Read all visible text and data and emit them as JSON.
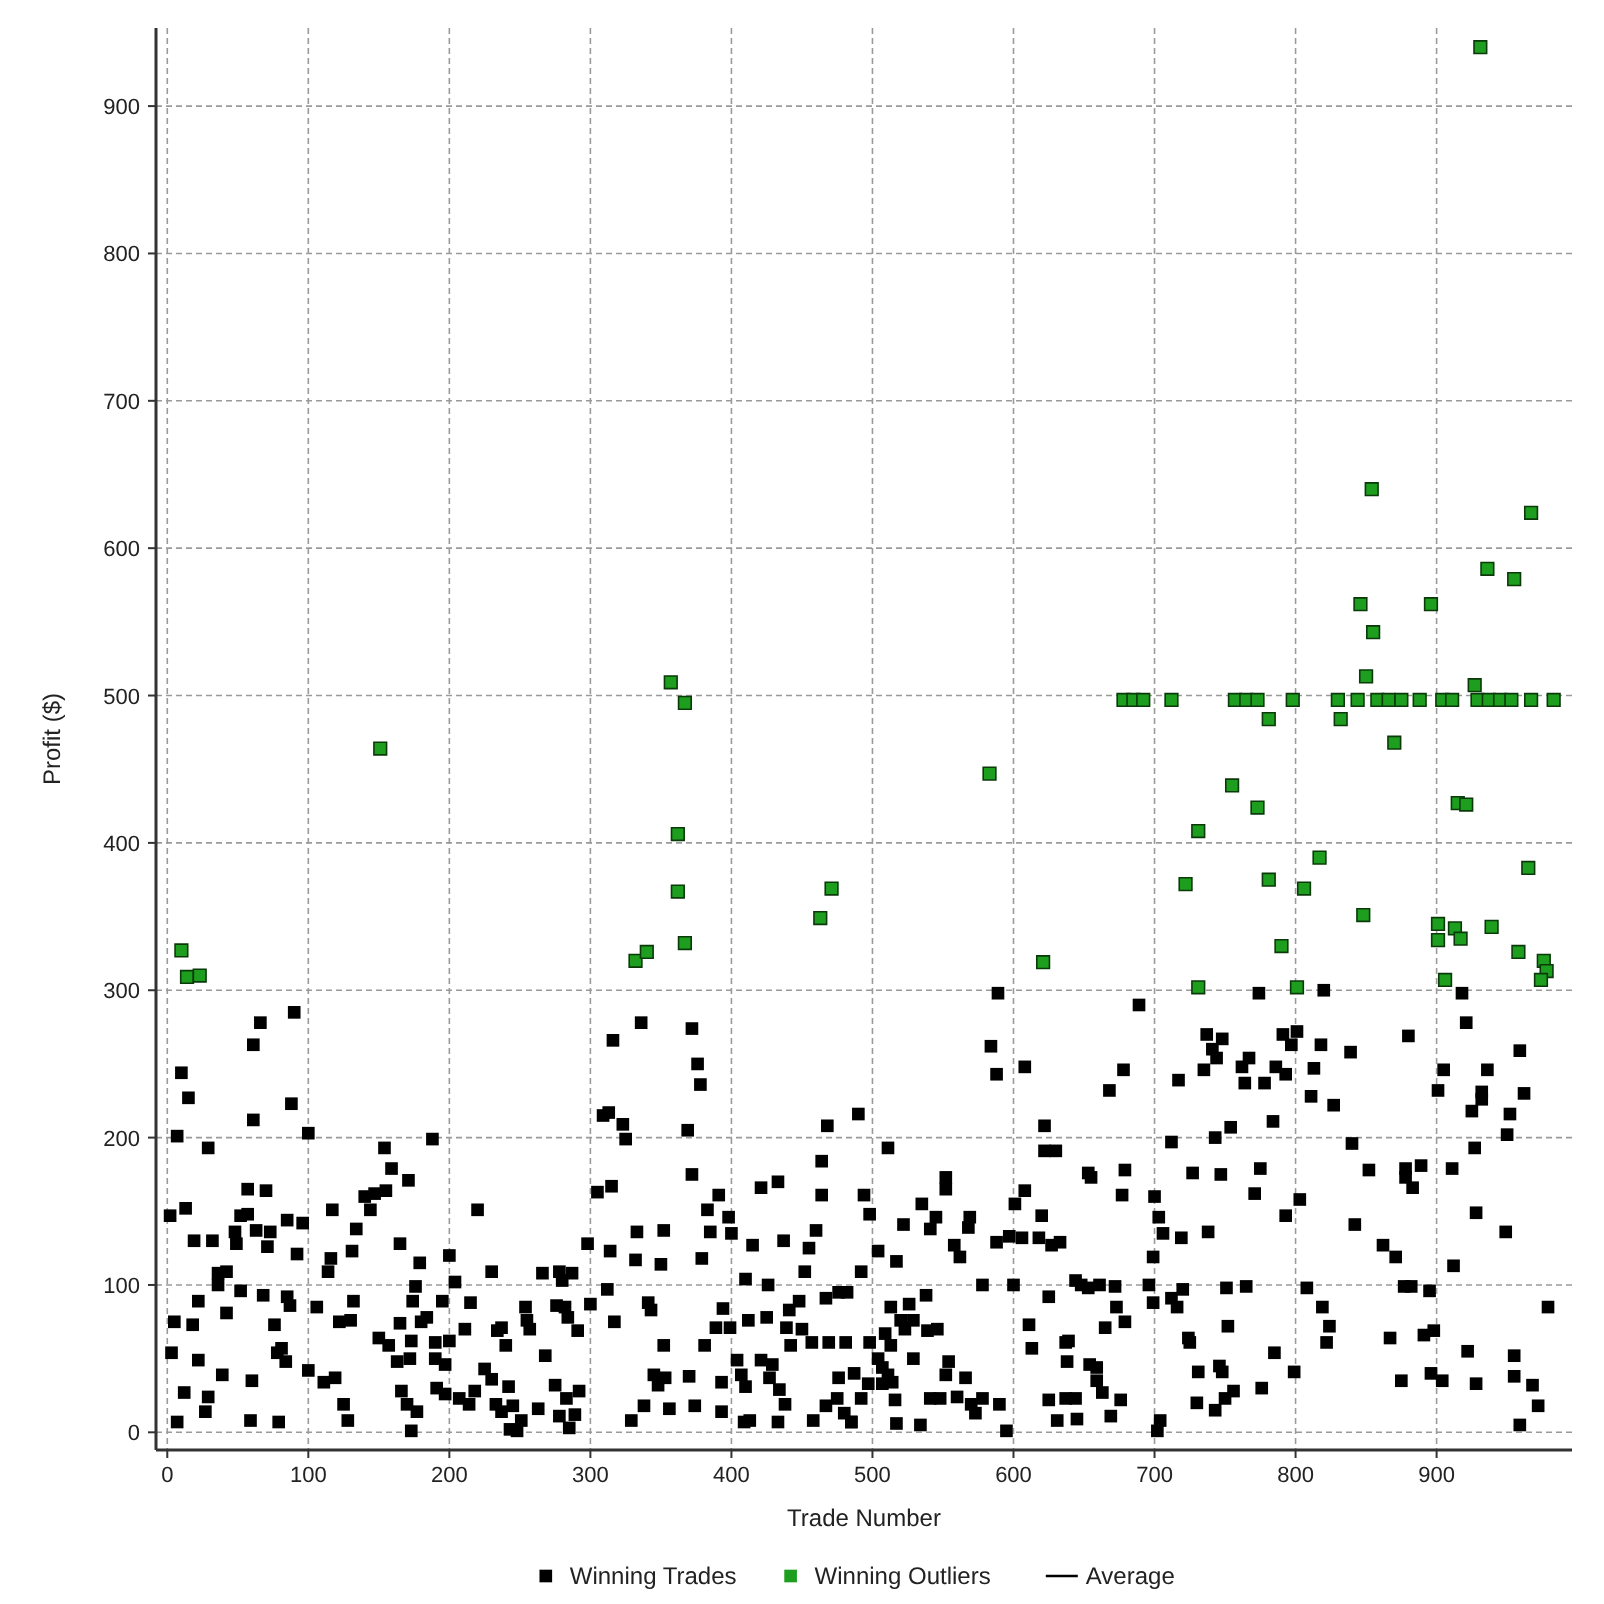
{
  "chart_data": {
    "type": "scatter",
    "xlabel": "Trade Number",
    "ylabel": "Profit ($)",
    "xlim": [
      -8,
      996
    ],
    "ylim": [
      -12,
      953
    ],
    "xticks": [
      0,
      100,
      200,
      300,
      400,
      500,
      600,
      700,
      800,
      900
    ],
    "yticks": [
      0,
      100,
      200,
      300,
      400,
      500,
      600,
      700,
      800,
      900
    ],
    "grid": true,
    "legend": "bottom",
    "marker": "square",
    "series": [
      {
        "name": "Winning Trades",
        "color": "#000000",
        "x": [
          90,
          66,
          61,
          10,
          15,
          88,
          61,
          7,
          100,
          188,
          29,
          154,
          159,
          171,
          57,
          70,
          140,
          147,
          155,
          2,
          13,
          117,
          144,
          220,
          52,
          57,
          85,
          96,
          19,
          32,
          48,
          49,
          63,
          73,
          71,
          134,
          92,
          131,
          165,
          200,
          116,
          179,
          114,
          230,
          36,
          42,
          36,
          176,
          204,
          52,
          68,
          85,
          87,
          22,
          132,
          174,
          195,
          215,
          42,
          106,
          5,
          18,
          76,
          122,
          130,
          165,
          180,
          184,
          211,
          234,
          150,
          157,
          173,
          190,
          200,
          3,
          81,
          78,
          84,
          22,
          163,
          172,
          190,
          197,
          39,
          100,
          60,
          111,
          119,
          225,
          230,
          12,
          29,
          125,
          166,
          191,
          197,
          218,
          27,
          170,
          177,
          207,
          214,
          7,
          59,
          79,
          128,
          173,
          237,
          336,
          316,
          372,
          376,
          378,
          309,
          313,
          323,
          325,
          369,
          468,
          372,
          305,
          315,
          391,
          421,
          433,
          464,
          464,
          383,
          398,
          333,
          352,
          385,
          400,
          298,
          314,
          415,
          437,
          460,
          455,
          332,
          350,
          379,
          452,
          266,
          278,
          287,
          280,
          410,
          426,
          312,
          254,
          276,
          282,
          300,
          341,
          343,
          284,
          255,
          291,
          317,
          394,
          389,
          399,
          412,
          425,
          441,
          448,
          467,
          476,
          482,
          237,
          257,
          240,
          268,
          352,
          381,
          404,
          421,
          429,
          439,
          450,
          457,
          469,
          481,
          442,
          345,
          353,
          348,
          370,
          393,
          407,
          410,
          427,
          434,
          476,
          242,
          275,
          283,
          292,
          233,
          245,
          263,
          278,
          289,
          251,
          243,
          248,
          285,
          338,
          356,
          374,
          393,
          329,
          409,
          413,
          433,
          438,
          458,
          467,
          475,
          480,
          485,
          589,
          689,
          584,
          588,
          608,
          678,
          668,
          717,
          490,
          622,
          622,
          630,
          511,
          712,
          653,
          655,
          679,
          552,
          552,
          608,
          727,
          494,
          677,
          700,
          498,
          601,
          535,
          545,
          541,
          569,
          568,
          522,
          620,
          703,
          706,
          719,
          597,
          606,
          618,
          627,
          633,
          588,
          558,
          562,
          504,
          517,
          492,
          699,
          578,
          600,
          644,
          648,
          653,
          661,
          672,
          696,
          720,
          712,
          716,
          699,
          625,
          538,
          513,
          526,
          529,
          523,
          539,
          546,
          673,
          611,
          613,
          637,
          639,
          665,
          679,
          638,
          654,
          659,
          659,
          663,
          676,
          724,
          725,
          731,
          730,
          498,
          509,
          513,
          520,
          504,
          507,
          511,
          529,
          487,
          497,
          507,
          514,
          554,
          552,
          566,
          492,
          516,
          541,
          548,
          560,
          570,
          573,
          578,
          590,
          485,
          517,
          534,
          595,
          625,
          637,
          644,
          631,
          645,
          669,
          704,
          702,
          774,
          820,
          918,
          737,
          748,
          741,
          744,
          735,
          791,
          801,
          797,
          818,
          762,
          767,
          786,
          793,
          813,
          778,
          764,
          839,
          811,
          827,
          784,
          754,
          743,
          880,
          921,
          959,
          905,
          936,
          901,
          932,
          932,
          925,
          962,
          952,
          950,
          927,
          840,
          852,
          878,
          878,
          883,
          889,
          911,
          775,
          747,
          771,
          803,
          793,
          738,
          842,
          862,
          871,
          928,
          949,
          912,
          751,
          765,
          808,
          819,
          824,
          822,
          877,
          882,
          895,
          979,
          752,
          785,
          867,
          891,
          898,
          922,
          955,
          746,
          748,
          799,
          776,
          756,
          750,
          743,
          875,
          896,
          904,
          928,
          955,
          968,
          972,
          959
        ],
        "values": [
          285,
          278,
          263,
          244,
          227,
          223,
          212,
          201,
          203,
          199,
          193,
          193,
          179,
          171,
          165,
          164,
          160,
          162,
          164,
          147,
          152,
          151,
          151,
          151,
          147,
          148,
          144,
          142,
          130,
          130,
          136,
          128,
          137,
          136,
          126,
          138,
          121,
          123,
          128,
          120,
          118,
          115,
          109,
          109,
          108,
          109,
          100,
          99,
          102,
          96,
          93,
          92,
          86,
          89,
          89,
          89,
          89,
          88,
          81,
          85,
          75,
          73,
          73,
          75,
          76,
          74,
          75,
          78,
          70,
          69,
          64,
          59,
          62,
          61,
          62,
          54,
          57,
          54,
          48,
          49,
          48,
          50,
          50,
          46,
          39,
          42,
          35,
          34,
          37,
          43,
          36,
          27,
          24,
          19,
          28,
          30,
          26,
          28,
          14,
          19,
          14,
          23,
          19,
          7,
          8,
          7,
          8,
          1,
          14,
          278,
          266,
          274,
          250,
          236,
          215,
          217,
          209,
          199,
          205,
          208,
          175,
          163,
          167,
          161,
          166,
          170,
          184,
          161,
          151,
          146,
          136,
          137,
          136,
          135,
          128,
          123,
          127,
          130,
          137,
          125,
          117,
          114,
          118,
          109,
          108,
          109,
          108,
          103,
          104,
          100,
          97,
          85,
          86,
          85,
          87,
          88,
          83,
          78,
          76,
          69,
          75,
          84,
          71,
          71,
          76,
          78,
          83,
          89,
          91,
          95,
          95,
          71,
          70,
          59,
          52,
          59,
          59,
          49,
          49,
          46,
          71,
          70,
          61,
          61,
          61,
          59,
          39,
          37,
          32,
          38,
          34,
          39,
          31,
          37,
          29,
          37,
          31,
          32,
          23,
          28,
          19,
          18,
          16,
          11,
          12,
          8,
          2,
          1,
          3,
          18,
          16,
          18,
          14,
          8,
          7,
          8,
          7,
          19,
          8,
          18,
          23,
          13,
          7,
          298,
          290,
          262,
          243,
          248,
          246,
          232,
          239,
          216,
          208,
          191,
          191,
          193,
          197,
          176,
          173,
          178,
          173,
          165,
          164,
          176,
          161,
          161,
          160,
          148,
          155,
          155,
          146,
          138,
          146,
          139,
          141,
          147,
          146,
          135,
          132,
          133,
          132,
          132,
          127,
          129,
          129,
          127,
          119,
          123,
          116,
          109,
          119,
          100,
          100,
          103,
          100,
          98,
          100,
          99,
          100,
          97,
          91,
          85,
          88,
          92,
          93,
          85,
          87,
          76,
          70,
          69,
          70,
          85,
          73,
          57,
          61,
          62,
          71,
          75,
          48,
          46,
          44,
          35,
          27,
          22,
          64,
          61,
          41,
          20,
          61,
          67,
          59,
          76,
          50,
          44,
          39,
          50,
          40,
          33,
          33,
          34,
          48,
          39,
          37,
          23,
          22,
          23,
          23,
          24,
          19,
          13,
          23,
          19,
          7,
          6,
          5,
          1,
          22,
          23,
          23,
          8,
          9,
          11,
          8,
          1,
          298,
          300,
          298,
          270,
          267,
          260,
          254,
          246,
          270,
          272,
          263,
          263,
          248,
          254,
          248,
          243,
          247,
          237,
          237,
          258,
          228,
          222,
          211,
          207,
          200,
          269,
          278,
          259,
          246,
          246,
          232,
          231,
          226,
          218,
          230,
          216,
          202,
          193,
          196,
          178,
          179,
          173,
          166,
          181,
          179,
          179,
          175,
          162,
          158,
          147,
          136,
          141,
          127,
          119,
          149,
          136,
          113,
          98,
          99,
          98,
          85,
          72,
          61,
          99,
          99,
          96,
          85,
          72,
          54,
          64,
          66,
          69,
          55,
          52,
          45,
          41,
          41,
          30,
          28,
          23,
          15,
          35,
          40,
          35,
          33,
          38,
          32,
          18,
          5
        ]
      },
      {
        "name": "Winning Outliers",
        "color": "#1e9e1e",
        "x": [
          10,
          14,
          23,
          151,
          357,
          367,
          362,
          362,
          367,
          332,
          340,
          463,
          471,
          583,
          621,
          678,
          685,
          692,
          712,
          722,
          731,
          755,
          757,
          765,
          773,
          773,
          781,
          781,
          790,
          798,
          806,
          817,
          830,
          832,
          846,
          844,
          850,
          855,
          854,
          848,
          858,
          866,
          875,
          870,
          888,
          896,
          901,
          904,
          911,
          901,
          906,
          913,
          917,
          915,
          921,
          927,
          931,
          936,
          929,
          937,
          945,
          953,
          939,
          955,
          958,
          967,
          965,
          967,
          983,
          976,
          978,
          974,
          731,
          801
        ],
        "values": [
          327,
          309,
          310,
          464,
          509,
          495,
          406,
          367,
          332,
          320,
          326,
          349,
          369,
          447,
          319,
          497,
          497,
          497,
          497,
          372,
          408,
          439,
          497,
          497,
          497,
          424,
          484,
          375,
          330,
          497,
          369,
          390,
          497,
          484,
          562,
          497,
          513,
          543,
          640,
          351,
          497,
          497,
          497,
          468,
          497,
          562,
          345,
          497,
          497,
          334,
          307,
          342,
          335,
          427,
          426,
          507,
          940,
          586,
          497,
          497,
          497,
          497,
          343,
          579,
          326,
          624,
          383,
          497,
          497,
          320,
          313,
          307,
          302,
          302
        ]
      },
      {
        "name": "Average",
        "type": "line",
        "color": "#000000"
      }
    ]
  }
}
